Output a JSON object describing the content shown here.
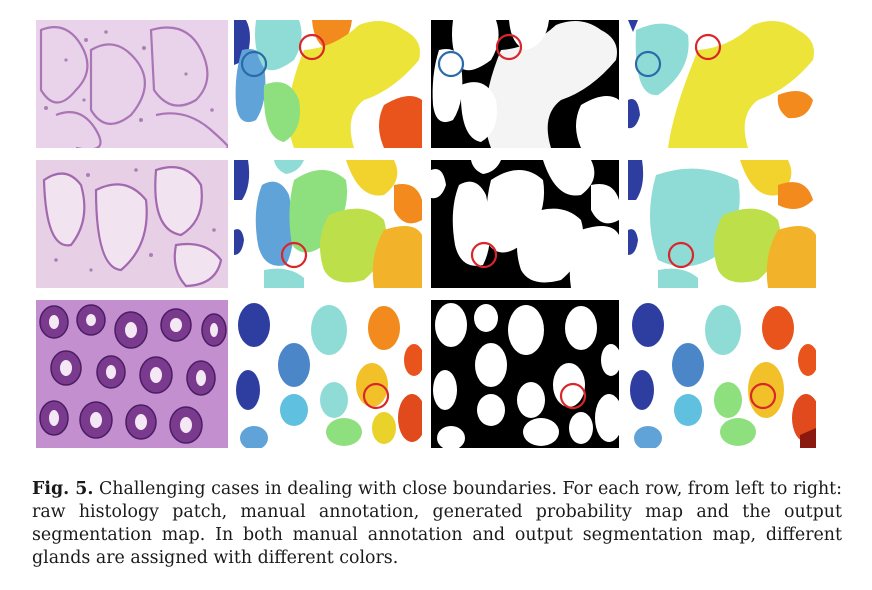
{
  "figure": {
    "rows": 3,
    "columns": [
      "raw histology patch",
      "manual annotation",
      "generated probability map",
      "output segmentation map"
    ]
  },
  "caption": {
    "label": "Fig. 5.",
    "text": "Challenging cases in dealing with close boundaries. For each row, from left to right: raw histology patch, manual annotation, generated probability map and the output segmentation map. In both manual annotation and output segmentation map, different glands are assigned with different colors."
  },
  "colors": {
    "highlight_red": "#d9262b",
    "highlight_blue": "#2b6aa8",
    "tissue_pink": "#e6c9e3",
    "tissue_purple": "#7a3a8e"
  }
}
